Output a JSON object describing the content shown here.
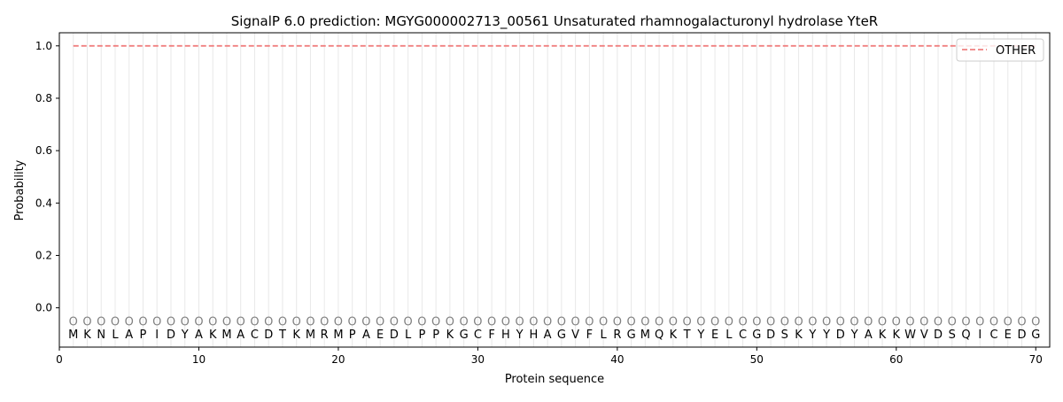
{
  "chart_data": {
    "type": "line",
    "title": "SignalP 6.0 prediction: MGYG000002713_00561 Unsaturated rhamnogalacturonyl hydrolase YteR",
    "xlabel": "Protein sequence",
    "ylabel": "Probability",
    "xlim": [
      0,
      71
    ],
    "ylim": [
      -0.15,
      1.05
    ],
    "xticks": [
      0,
      10,
      20,
      30,
      40,
      50,
      60,
      70
    ],
    "yticks": [
      0.0,
      0.2,
      0.4,
      0.6,
      0.8,
      1.0
    ],
    "ytick_labels": [
      "0.0",
      "0.2",
      "0.4",
      "0.6",
      "0.8",
      "1.0"
    ],
    "grid": "vertical lines at each residue",
    "legend_position": "top-right",
    "sequence": [
      "M",
      "K",
      "N",
      "L",
      "A",
      "P",
      "I",
      "D",
      "Y",
      "A",
      "K",
      "M",
      "A",
      "C",
      "D",
      "T",
      "K",
      "M",
      "R",
      "M",
      "P",
      "A",
      "E",
      "D",
      "L",
      "P",
      "P",
      "K",
      "G",
      "C",
      "F",
      "H",
      "Y",
      "H",
      "A",
      "G",
      "V",
      "F",
      "L",
      "R",
      "G",
      "M",
      "Q",
      "K",
      "T",
      "Y",
      "E",
      "L",
      "C",
      "G",
      "D",
      "S",
      "K",
      "Y",
      "Y",
      "D",
      "Y",
      "A",
      "K",
      "K",
      "W",
      "V",
      "D",
      "S",
      "Q",
      "I",
      "C",
      "E",
      "D",
      "G"
    ],
    "predicted_label": "O",
    "series": [
      {
        "name": "OTHER",
        "color": "#f08080",
        "style": "dashed",
        "x_range": [
          1,
          70
        ],
        "value": 1.0
      }
    ]
  }
}
